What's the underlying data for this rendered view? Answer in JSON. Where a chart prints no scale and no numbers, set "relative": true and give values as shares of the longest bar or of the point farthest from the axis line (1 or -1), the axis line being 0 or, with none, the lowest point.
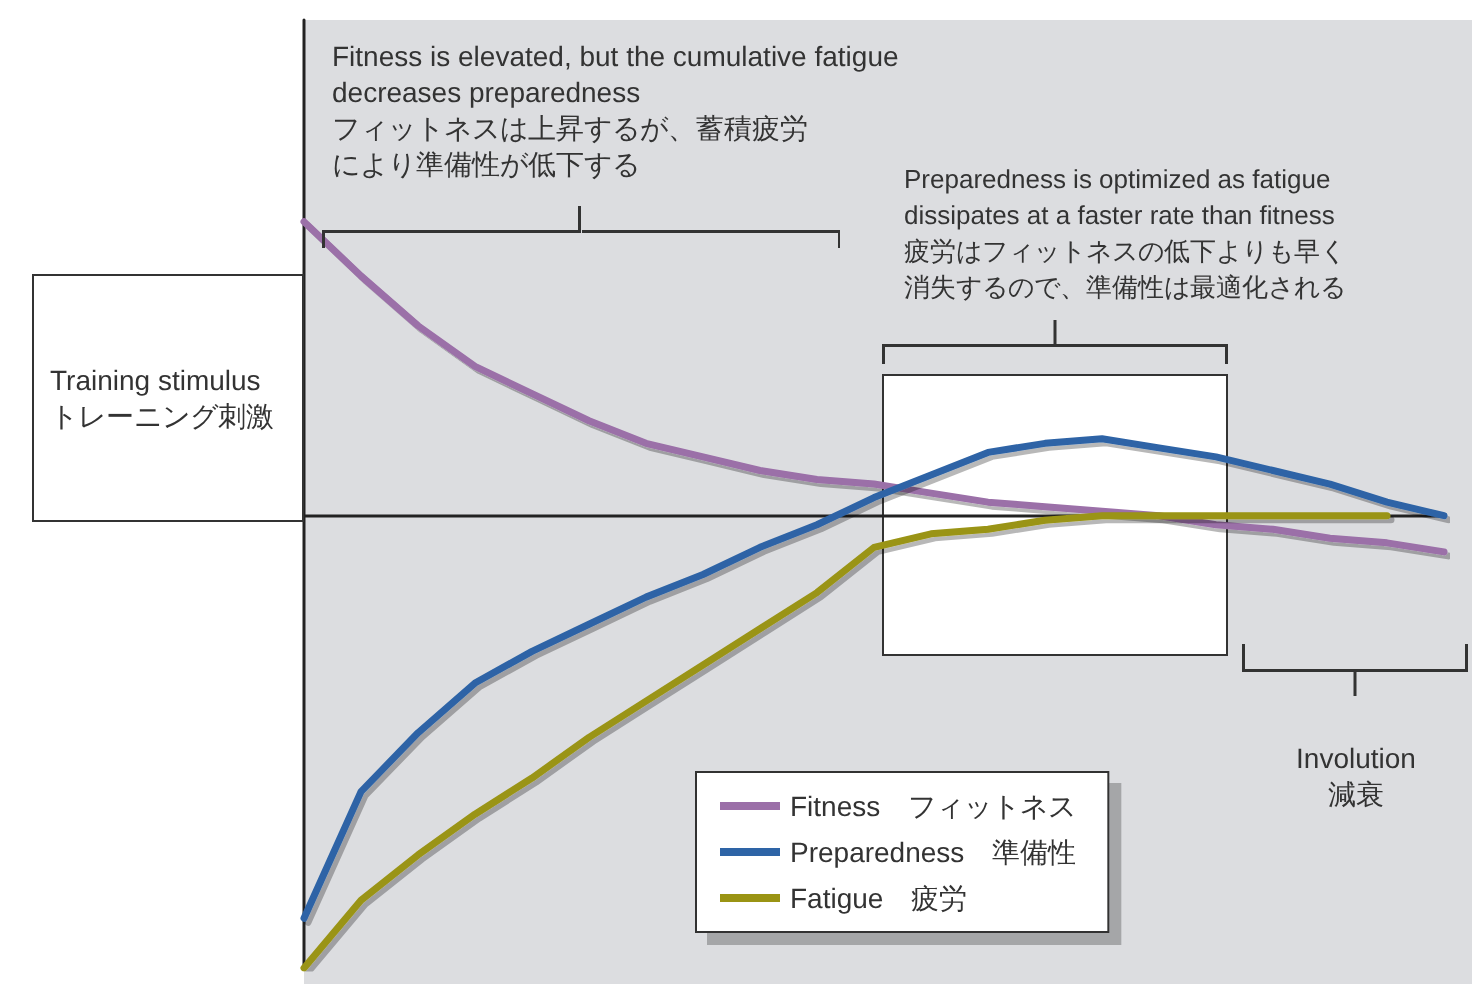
{
  "chart_data": {
    "type": "line",
    "relative": true,
    "legend": "bottom",
    "marker": "none",
    "line_style": "solid",
    "categories": [
      null,
      null,
      null,
      null,
      null,
      null,
      null,
      null,
      null,
      null,
      null,
      null,
      null,
      null,
      null,
      null,
      null,
      null,
      null,
      null,
      null
    ],
    "series": [
      {
        "name": "Fitness　フィットネス",
        "color": "#9b6fa8",
        "values": [
          0.65,
          0.53,
          0.42,
          0.33,
          0.27,
          0.21,
          0.16,
          0.13,
          0.1,
          0.08,
          0.07,
          0.05,
          0.03,
          0.02,
          0.01,
          0,
          -0.02,
          -0.03,
          -0.05,
          -0.06,
          -0.08
        ]
      },
      {
        "name": "Preparedness　準備性",
        "color": "#2e64a6",
        "values": [
          -0.89,
          -0.61,
          -0.48,
          -0.37,
          -0.3,
          -0.24,
          -0.18,
          -0.13,
          -0.07,
          -0.02,
          0.04,
          0.09,
          0.14,
          0.16,
          0.17,
          0.15,
          0.13,
          0.1,
          0.07,
          0.03,
          0
        ]
      },
      {
        "name": "Fatigue　疲労",
        "color": "#9a9414",
        "values": [
          -1,
          -0.85,
          -0.75,
          -0.66,
          -0.58,
          -0.49,
          -0.41,
          -0.33,
          -0.25,
          -0.17,
          -0.07,
          -0.04,
          -0.03,
          -0.01,
          0,
          0,
          0,
          0,
          0,
          0,
          null
        ]
      }
    ],
    "annotations": [
      "Training stimulus\nトレーニング刺激",
      "Fitness is elevated, but the cumulative fatigue\ndecreases preparedness",
      "フィットネスは上昇するが、蓄積疲労",
      "により準備性が低下する",
      "Preparedness is optimized as fatigue\ndissipates at a faster rate than fitness",
      "疲労はフィットネスの低下よりも早く",
      "消失するので、準備性は最適化される",
      "Involution\n減衰"
    ]
  }
}
